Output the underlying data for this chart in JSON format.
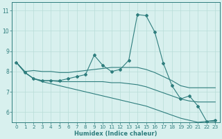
{
  "x": [
    0,
    1,
    2,
    3,
    4,
    5,
    6,
    7,
    8,
    9,
    10,
    11,
    12,
    13,
    14,
    15,
    16,
    17,
    18,
    19,
    20,
    21,
    22,
    23
  ],
  "line_main": [
    8.45,
    7.95,
    7.65,
    7.55,
    7.55,
    7.55,
    7.65,
    7.75,
    7.85,
    8.8,
    8.3,
    8.0,
    8.1,
    8.55,
    10.8,
    10.75,
    9.95,
    8.4,
    7.3,
    6.65,
    6.8,
    6.3,
    5.55,
    5.6
  ],
  "line_upper": [
    8.45,
    8.0,
    8.05,
    8.0,
    8.0,
    7.95,
    7.95,
    8.0,
    8.05,
    8.1,
    8.15,
    8.2,
    8.2,
    8.2,
    8.2,
    8.1,
    7.95,
    7.75,
    7.55,
    7.3,
    7.2,
    7.2,
    7.2,
    7.2
  ],
  "line_mid": [
    8.45,
    7.95,
    7.65,
    7.55,
    7.55,
    7.5,
    7.5,
    7.5,
    7.5,
    7.5,
    7.5,
    7.45,
    7.45,
    7.4,
    7.35,
    7.25,
    7.1,
    6.95,
    6.8,
    6.65,
    6.55,
    6.5,
    6.5,
    6.5
  ],
  "line_lower": [
    8.45,
    7.95,
    7.65,
    7.5,
    7.4,
    7.3,
    7.2,
    7.1,
    7.0,
    6.9,
    6.8,
    6.7,
    6.6,
    6.5,
    6.4,
    6.3,
    6.15,
    6.0,
    5.85,
    5.7,
    5.6,
    5.5,
    5.55,
    5.55
  ],
  "line_color": "#2e7d7d",
  "bg_color": "#d8f0ee",
  "grid_color": "#b8dcd8",
  "xlabel": "Humidex (Indice chaleur)",
  "ylim": [
    5.5,
    11.4
  ],
  "xlim": [
    -0.5,
    23.5
  ],
  "yticks": [
    6,
    7,
    8,
    9,
    10,
    11
  ],
  "xticks": [
    0,
    1,
    2,
    3,
    4,
    5,
    6,
    7,
    8,
    9,
    10,
    11,
    12,
    13,
    14,
    15,
    16,
    17,
    18,
    19,
    20,
    21,
    22,
    23
  ],
  "tick_fontsize": 5.2,
  "xlabel_fontsize": 6.0
}
